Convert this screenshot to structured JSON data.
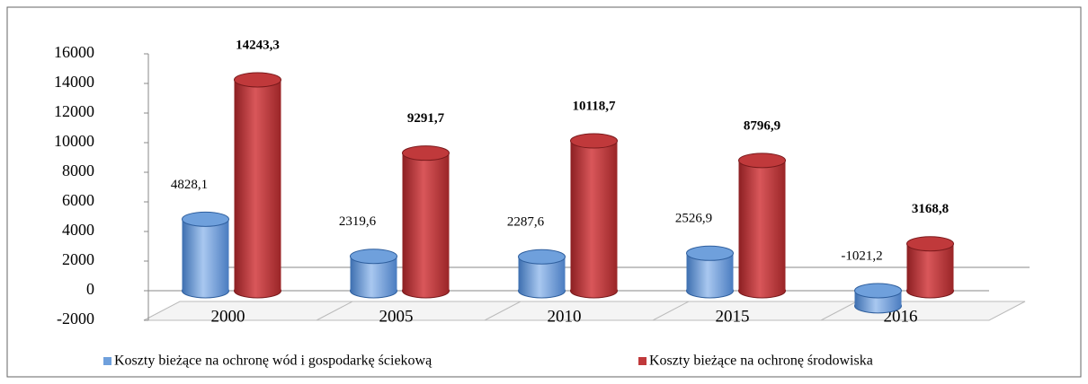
{
  "chart_data": {
    "type": "bar",
    "categories": [
      "2000",
      "2005",
      "2010",
      "2015",
      "2016"
    ],
    "series": [
      {
        "name": "Koszty bieżące na ochronę wód i gospodarkę ściekową",
        "color": "#6fa0dc",
        "values": [
          4828.1,
          2319.6,
          2287.6,
          2526.9,
          -1021.2
        ],
        "value_labels": [
          "4828,1",
          "2319,6",
          "2287,6",
          "2526,9",
          "-1021,2"
        ]
      },
      {
        "name": "Koszty bieżące na ochronę środowiska",
        "color": "#c0393b",
        "values": [
          14243.3,
          9291.7,
          10118.7,
          8796.9,
          3168.8
        ],
        "value_labels": [
          "14243,3",
          "9291,7",
          "10118,7",
          "8796,9",
          "3168,8"
        ]
      }
    ],
    "ylim": [
      -2000,
      16000
    ],
    "yticks": [
      -2000,
      0,
      2000,
      4000,
      6000,
      8000,
      10000,
      12000,
      14000,
      16000
    ],
    "legend": "bottom"
  }
}
